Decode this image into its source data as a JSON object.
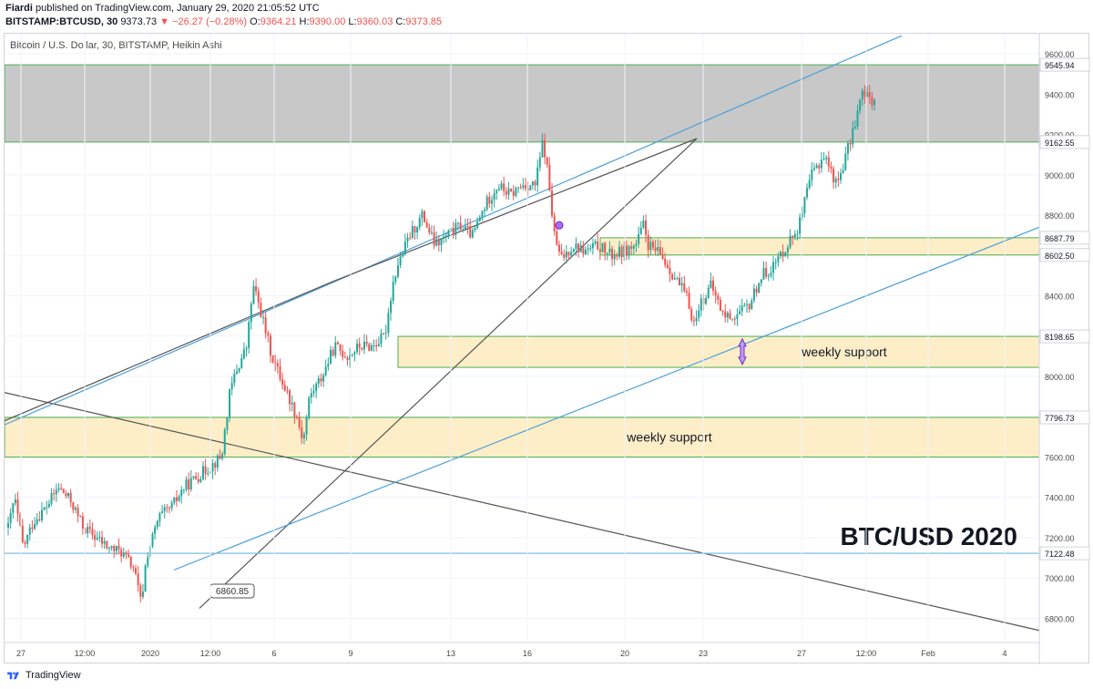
{
  "header": {
    "author": "Fiardi",
    "published": "published on TradingView.com, January 29, 2020 21:05:52 UTC",
    "symbol": "BITSTAMP:BTCUSD, 30",
    "last": "9373.73",
    "change": "▼ −26.27 (−0.28%)",
    "ohlc_o_label": "O:",
    "ohlc_o": "9364.21",
    "ohlc_h_label": "H:",
    "ohlc_h": "9390.00",
    "ohlc_l_label": "L:",
    "ohlc_l": "9360.03",
    "ohlc_c_label": "C:",
    "ohlc_c": "9373.85"
  },
  "footer": {
    "brand": "TradingView"
  },
  "colors": {
    "up": "#26a69a",
    "down": "#ef5350",
    "resistance_zone": "#c8c8c8",
    "support_zone": "#fdeec8",
    "zone_border": "#4caf50",
    "trend_blue": "#4a9fd8",
    "trend_dark": "#555555"
  },
  "chart_data": {
    "type": "candlestick",
    "title": "Bitcoin / U.S. Dollar, 30, BITSTAMP, Heikin Ashi",
    "watermark": "BTC/USD 2020",
    "ylim": [
      6680,
      9700
    ],
    "y_ticks": [
      "9600.00",
      "9400.00",
      "9200.00",
      "9000.00",
      "8800.00",
      "8600.00",
      "8400.00",
      "8200.00",
      "8000.00",
      "7800.00",
      "7600.00",
      "7400.00",
      "7200.00",
      "7000.00",
      "6800.00"
    ],
    "x_ticks": [
      "27",
      "12:00",
      "2020",
      "12:00",
      "6",
      "9",
      "13",
      "16",
      "20",
      "23",
      "27",
      "12:00",
      "Feb",
      "4"
    ],
    "price_labels": [
      "9545.94",
      "9162.55",
      "8687.79",
      "8602.50",
      "8198.65",
      "7796.73",
      "7122.48"
    ],
    "zones": [
      {
        "type": "resistance",
        "top": 9545.94,
        "bottom": 9162.55
      },
      {
        "type": "support",
        "top": 8687.79,
        "bottom": 8602.5
      },
      {
        "type": "support",
        "top": 8198.65,
        "bottom": 8045,
        "label": "weekly support"
      },
      {
        "type": "support",
        "top": 7796.73,
        "bottom": 7600,
        "label": "weekly support"
      }
    ],
    "low_callout": "6860.85",
    "path": [
      [
        0,
        7250
      ],
      [
        0.5,
        7400
      ],
      [
        1.2,
        7150
      ],
      [
        2,
        7280
      ],
      [
        3,
        7350
      ],
      [
        4,
        7450
      ],
      [
        5,
        7380
      ],
      [
        6,
        7250
      ],
      [
        7,
        7200
      ],
      [
        8,
        7150
      ],
      [
        9,
        7130
      ],
      [
        10,
        7050
      ],
      [
        10.6,
        6870
      ],
      [
        11,
        7100
      ],
      [
        12,
        7300
      ],
      [
        13,
        7350
      ],
      [
        14,
        7450
      ],
      [
        15,
        7500
      ],
      [
        16,
        7550
      ],
      [
        17,
        7600
      ],
      [
        17.6,
        7900
      ],
      [
        18,
        8000
      ],
      [
        19,
        8150
      ],
      [
        19.5,
        8450
      ],
      [
        20,
        8350
      ],
      [
        21,
        8100
      ],
      [
        22,
        7950
      ],
      [
        23,
        7800
      ],
      [
        23.5,
        7680
      ],
      [
        24,
        7900
      ],
      [
        25,
        8000
      ],
      [
        26,
        8150
      ],
      [
        27,
        8100
      ],
      [
        28,
        8150
      ],
      [
        29,
        8150
      ],
      [
        30,
        8200
      ],
      [
        30.6,
        8450
      ],
      [
        31,
        8550
      ],
      [
        32,
        8700
      ],
      [
        33,
        8800
      ],
      [
        34,
        8650
      ],
      [
        35,
        8700
      ],
      [
        36,
        8750
      ],
      [
        37,
        8700
      ],
      [
        38,
        8850
      ],
      [
        39,
        8950
      ],
      [
        40,
        8900
      ],
      [
        41,
        8950
      ],
      [
        42,
        8950
      ],
      [
        42.6,
        9170
      ],
      [
        43,
        9000
      ],
      [
        43.5,
        8700
      ],
      [
        44,
        8580
      ],
      [
        45,
        8650
      ],
      [
        46,
        8620
      ],
      [
        47,
        8650
      ],
      [
        48,
        8600
      ],
      [
        49,
        8620
      ],
      [
        50,
        8650
      ],
      [
        50.6,
        8750
      ],
      [
        51,
        8650
      ],
      [
        52,
        8600
      ],
      [
        53,
        8500
      ],
      [
        54,
        8400
      ],
      [
        54.7,
        8250
      ],
      [
        55,
        8350
      ],
      [
        56,
        8450
      ],
      [
        57,
        8300
      ],
      [
        58,
        8300
      ],
      [
        59,
        8350
      ],
      [
        60,
        8500
      ],
      [
        61,
        8550
      ],
      [
        62,
        8650
      ],
      [
        63,
        8750
      ],
      [
        64,
        9000
      ],
      [
        65,
        9100
      ],
      [
        66,
        8950
      ],
      [
        67,
        9150
      ],
      [
        68,
        9400
      ],
      [
        69,
        9370
      ]
    ]
  }
}
